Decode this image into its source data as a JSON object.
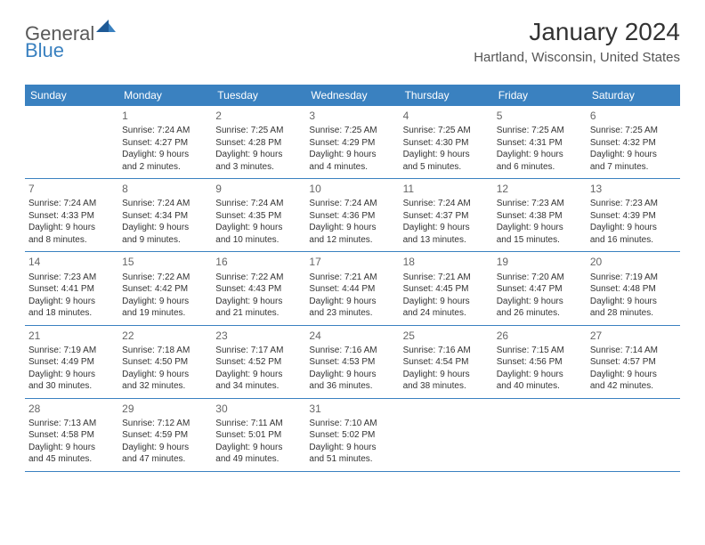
{
  "logo": {
    "general": "General",
    "blue": "Blue"
  },
  "title": "January 2024",
  "location": "Hartland, Wisconsin, United States",
  "dayHeaders": [
    "Sunday",
    "Monday",
    "Tuesday",
    "Wednesday",
    "Thursday",
    "Friday",
    "Saturday"
  ],
  "colors": {
    "headerBg": "#3a81c0",
    "headerText": "#ffffff",
    "border": "#3a81c0",
    "logoGray": "#595959",
    "logoBlue": "#3a81c0"
  },
  "weeks": [
    [
      {
        "num": "",
        "sunrise": "",
        "sunset": "",
        "daylight1": "",
        "daylight2": ""
      },
      {
        "num": "1",
        "sunrise": "Sunrise: 7:24 AM",
        "sunset": "Sunset: 4:27 PM",
        "daylight1": "Daylight: 9 hours",
        "daylight2": "and 2 minutes."
      },
      {
        "num": "2",
        "sunrise": "Sunrise: 7:25 AM",
        "sunset": "Sunset: 4:28 PM",
        "daylight1": "Daylight: 9 hours",
        "daylight2": "and 3 minutes."
      },
      {
        "num": "3",
        "sunrise": "Sunrise: 7:25 AM",
        "sunset": "Sunset: 4:29 PM",
        "daylight1": "Daylight: 9 hours",
        "daylight2": "and 4 minutes."
      },
      {
        "num": "4",
        "sunrise": "Sunrise: 7:25 AM",
        "sunset": "Sunset: 4:30 PM",
        "daylight1": "Daylight: 9 hours",
        "daylight2": "and 5 minutes."
      },
      {
        "num": "5",
        "sunrise": "Sunrise: 7:25 AM",
        "sunset": "Sunset: 4:31 PM",
        "daylight1": "Daylight: 9 hours",
        "daylight2": "and 6 minutes."
      },
      {
        "num": "6",
        "sunrise": "Sunrise: 7:25 AM",
        "sunset": "Sunset: 4:32 PM",
        "daylight1": "Daylight: 9 hours",
        "daylight2": "and 7 minutes."
      }
    ],
    [
      {
        "num": "7",
        "sunrise": "Sunrise: 7:24 AM",
        "sunset": "Sunset: 4:33 PM",
        "daylight1": "Daylight: 9 hours",
        "daylight2": "and 8 minutes."
      },
      {
        "num": "8",
        "sunrise": "Sunrise: 7:24 AM",
        "sunset": "Sunset: 4:34 PM",
        "daylight1": "Daylight: 9 hours",
        "daylight2": "and 9 minutes."
      },
      {
        "num": "9",
        "sunrise": "Sunrise: 7:24 AM",
        "sunset": "Sunset: 4:35 PM",
        "daylight1": "Daylight: 9 hours",
        "daylight2": "and 10 minutes."
      },
      {
        "num": "10",
        "sunrise": "Sunrise: 7:24 AM",
        "sunset": "Sunset: 4:36 PM",
        "daylight1": "Daylight: 9 hours",
        "daylight2": "and 12 minutes."
      },
      {
        "num": "11",
        "sunrise": "Sunrise: 7:24 AM",
        "sunset": "Sunset: 4:37 PM",
        "daylight1": "Daylight: 9 hours",
        "daylight2": "and 13 minutes."
      },
      {
        "num": "12",
        "sunrise": "Sunrise: 7:23 AM",
        "sunset": "Sunset: 4:38 PM",
        "daylight1": "Daylight: 9 hours",
        "daylight2": "and 15 minutes."
      },
      {
        "num": "13",
        "sunrise": "Sunrise: 7:23 AM",
        "sunset": "Sunset: 4:39 PM",
        "daylight1": "Daylight: 9 hours",
        "daylight2": "and 16 minutes."
      }
    ],
    [
      {
        "num": "14",
        "sunrise": "Sunrise: 7:23 AM",
        "sunset": "Sunset: 4:41 PM",
        "daylight1": "Daylight: 9 hours",
        "daylight2": "and 18 minutes."
      },
      {
        "num": "15",
        "sunrise": "Sunrise: 7:22 AM",
        "sunset": "Sunset: 4:42 PM",
        "daylight1": "Daylight: 9 hours",
        "daylight2": "and 19 minutes."
      },
      {
        "num": "16",
        "sunrise": "Sunrise: 7:22 AM",
        "sunset": "Sunset: 4:43 PM",
        "daylight1": "Daylight: 9 hours",
        "daylight2": "and 21 minutes."
      },
      {
        "num": "17",
        "sunrise": "Sunrise: 7:21 AM",
        "sunset": "Sunset: 4:44 PM",
        "daylight1": "Daylight: 9 hours",
        "daylight2": "and 23 minutes."
      },
      {
        "num": "18",
        "sunrise": "Sunrise: 7:21 AM",
        "sunset": "Sunset: 4:45 PM",
        "daylight1": "Daylight: 9 hours",
        "daylight2": "and 24 minutes."
      },
      {
        "num": "19",
        "sunrise": "Sunrise: 7:20 AM",
        "sunset": "Sunset: 4:47 PM",
        "daylight1": "Daylight: 9 hours",
        "daylight2": "and 26 minutes."
      },
      {
        "num": "20",
        "sunrise": "Sunrise: 7:19 AM",
        "sunset": "Sunset: 4:48 PM",
        "daylight1": "Daylight: 9 hours",
        "daylight2": "and 28 minutes."
      }
    ],
    [
      {
        "num": "21",
        "sunrise": "Sunrise: 7:19 AM",
        "sunset": "Sunset: 4:49 PM",
        "daylight1": "Daylight: 9 hours",
        "daylight2": "and 30 minutes."
      },
      {
        "num": "22",
        "sunrise": "Sunrise: 7:18 AM",
        "sunset": "Sunset: 4:50 PM",
        "daylight1": "Daylight: 9 hours",
        "daylight2": "and 32 minutes."
      },
      {
        "num": "23",
        "sunrise": "Sunrise: 7:17 AM",
        "sunset": "Sunset: 4:52 PM",
        "daylight1": "Daylight: 9 hours",
        "daylight2": "and 34 minutes."
      },
      {
        "num": "24",
        "sunrise": "Sunrise: 7:16 AM",
        "sunset": "Sunset: 4:53 PM",
        "daylight1": "Daylight: 9 hours",
        "daylight2": "and 36 minutes."
      },
      {
        "num": "25",
        "sunrise": "Sunrise: 7:16 AM",
        "sunset": "Sunset: 4:54 PM",
        "daylight1": "Daylight: 9 hours",
        "daylight2": "and 38 minutes."
      },
      {
        "num": "26",
        "sunrise": "Sunrise: 7:15 AM",
        "sunset": "Sunset: 4:56 PM",
        "daylight1": "Daylight: 9 hours",
        "daylight2": "and 40 minutes."
      },
      {
        "num": "27",
        "sunrise": "Sunrise: 7:14 AM",
        "sunset": "Sunset: 4:57 PM",
        "daylight1": "Daylight: 9 hours",
        "daylight2": "and 42 minutes."
      }
    ],
    [
      {
        "num": "28",
        "sunrise": "Sunrise: 7:13 AM",
        "sunset": "Sunset: 4:58 PM",
        "daylight1": "Daylight: 9 hours",
        "daylight2": "and 45 minutes."
      },
      {
        "num": "29",
        "sunrise": "Sunrise: 7:12 AM",
        "sunset": "Sunset: 4:59 PM",
        "daylight1": "Daylight: 9 hours",
        "daylight2": "and 47 minutes."
      },
      {
        "num": "30",
        "sunrise": "Sunrise: 7:11 AM",
        "sunset": "Sunset: 5:01 PM",
        "daylight1": "Daylight: 9 hours",
        "daylight2": "and 49 minutes."
      },
      {
        "num": "31",
        "sunrise": "Sunrise: 7:10 AM",
        "sunset": "Sunset: 5:02 PM",
        "daylight1": "Daylight: 9 hours",
        "daylight2": "and 51 minutes."
      },
      {
        "num": "",
        "sunrise": "",
        "sunset": "",
        "daylight1": "",
        "daylight2": ""
      },
      {
        "num": "",
        "sunrise": "",
        "sunset": "",
        "daylight1": "",
        "daylight2": ""
      },
      {
        "num": "",
        "sunrise": "",
        "sunset": "",
        "daylight1": "",
        "daylight2": ""
      }
    ]
  ]
}
